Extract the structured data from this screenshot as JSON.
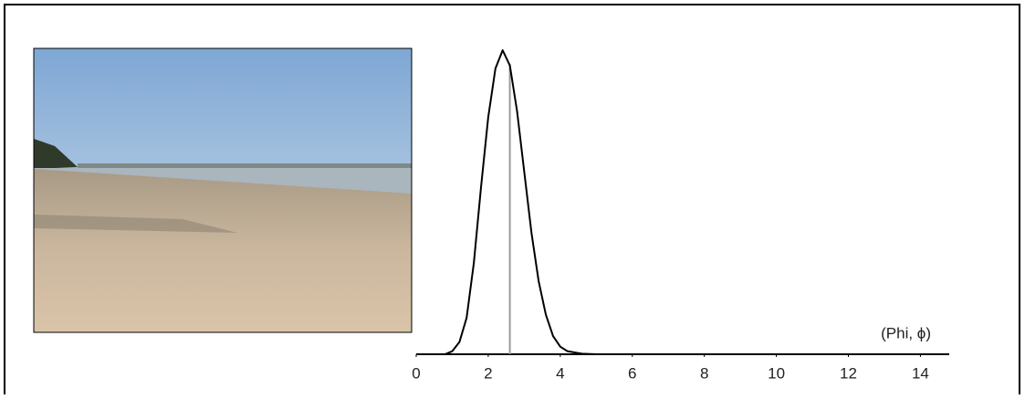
{
  "chart_data": {
    "type": "line",
    "x_label": "(Phi, ϕ)",
    "x": [
      0,
      0.8,
      1.0,
      1.2,
      1.4,
      1.6,
      1.8,
      2.0,
      2.2,
      2.4,
      2.6,
      2.8,
      3.0,
      3.2,
      3.4,
      3.6,
      3.8,
      4.0,
      4.2,
      4.6,
      5.0,
      14.0
    ],
    "series": [
      {
        "color": "#000000",
        "values": [
          0,
          0,
          0.01,
          0.04,
          0.12,
          0.3,
          0.55,
          0.78,
          0.94,
          1.0,
          0.95,
          0.8,
          0.6,
          0.4,
          0.24,
          0.13,
          0.06,
          0.025,
          0.01,
          0.002,
          0,
          0
        ]
      }
    ],
    "marker_x": 2.6,
    "marker_color": "#9a9a9a",
    "xlim": [
      0,
      14.8
    ],
    "ylim": [
      0,
      1
    ],
    "xticks": [
      0,
      2,
      4,
      6,
      8,
      10,
      12,
      14
    ]
  }
}
